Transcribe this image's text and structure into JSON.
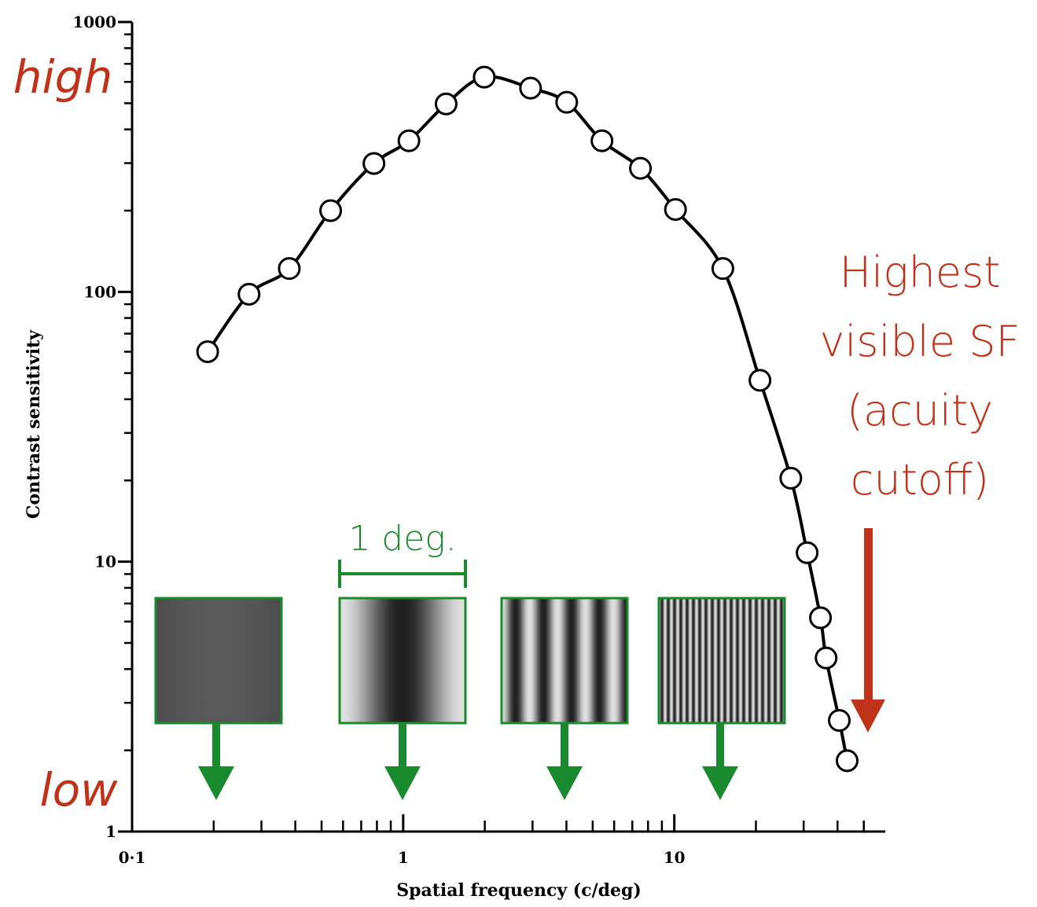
{
  "chart_data": {
    "type": "line",
    "x_label": "Spatial frequency (c/deg)",
    "y_label": "Contrast sensitivity",
    "log_x": true,
    "log_y": true,
    "x": [
      0.19,
      0.27,
      0.38,
      0.54,
      0.78,
      1.05,
      1.44,
      1.99,
      2.95,
      4.01,
      5.41,
      7.5,
      10.1,
      15.1,
      20.7,
      26.9,
      30.9,
      34.6,
      36.3,
      40.6,
      43.4
    ],
    "values": [
      60,
      98,
      122,
      200,
      299,
      363,
      497,
      625,
      569,
      504,
      363,
      287,
      202,
      122,
      47,
      20.4,
      10.8,
      6.2,
      4.4,
      2.58,
      1.83
    ],
    "color": "#000000",
    "xlim": [
      0.1,
      60
    ],
    "ylim": [
      1,
      1000
    ],
    "xticks": [
      {
        "value": 0.1,
        "label": "0·1"
      },
      1,
      10
    ],
    "yticks": [
      1,
      10,
      100,
      1000
    ],
    "x_minor_ticks": [
      0.2,
      0.3,
      0.4,
      0.5,
      0.6,
      0.7,
      0.8,
      0.9,
      2,
      3,
      4,
      5,
      6,
      7,
      8,
      9,
      20,
      30,
      40,
      50
    ],
    "y_minor_ticks": [
      2,
      3,
      4,
      5,
      6,
      7,
      8,
      9,
      20,
      30,
      40,
      50,
      60,
      70,
      80,
      90,
      200,
      300,
      400,
      500,
      600,
      700,
      800,
      900
    ],
    "annotations": {
      "high": "high",
      "low": "low",
      "cutoff": [
        "Highest",
        "visible SF",
        "(acuity",
        "cutoff)"
      ],
      "scale_bar": "1 deg."
    }
  }
}
